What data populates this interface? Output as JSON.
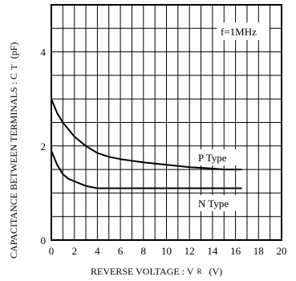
{
  "chart_data": {
    "type": "line",
    "xlabel": "REVERSE  VOLTAGE : V",
    "xlabel_sub": "R",
    "xlabel_unit": "(V)",
    "ylabel": "CAPACITANCE BETWEEN TERMINALS : C",
    "ylabel_sub": "T",
    "ylabel_unit": "(pF)",
    "xlim": [
      0,
      20
    ],
    "ylim": [
      0,
      5
    ],
    "x_ticks": [
      "0",
      "2",
      "4",
      "6",
      "8",
      "10",
      "12",
      "14",
      "16",
      "18",
      "20"
    ],
    "y_ticks": [
      "0",
      "2",
      "4"
    ],
    "grid": true,
    "annotation": "f=1MHz",
    "series": [
      {
        "name": "P Type",
        "x": [
          0,
          0.5,
          1,
          2,
          3,
          4,
          5,
          6,
          8,
          10,
          12,
          14,
          15,
          16,
          16.5
        ],
        "y": [
          3.0,
          2.7,
          2.5,
          2.2,
          2.0,
          1.85,
          1.77,
          1.72,
          1.65,
          1.6,
          1.55,
          1.52,
          1.5,
          1.5,
          1.5
        ]
      },
      {
        "name": "N Type",
        "x": [
          0,
          0.5,
          1,
          1.5,
          2,
          3,
          4,
          5,
          6,
          8,
          10,
          12,
          14,
          16,
          16.5
        ],
        "y": [
          1.9,
          1.6,
          1.4,
          1.3,
          1.25,
          1.15,
          1.1,
          1.1,
          1.1,
          1.1,
          1.1,
          1.1,
          1.1,
          1.1,
          1.1
        ]
      }
    ]
  }
}
